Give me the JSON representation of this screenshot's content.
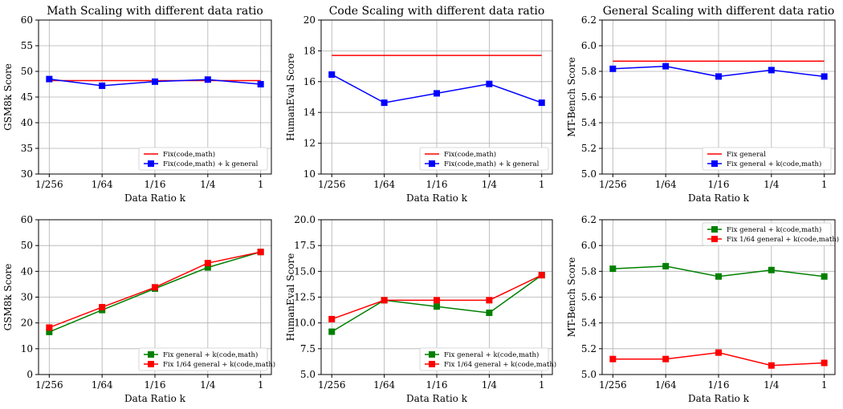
{
  "chart_data": [
    {
      "type": "line",
      "title": "Math Scaling with different data ratio",
      "xlabel": "Data Ratio k",
      "ylabel": "GSM8k Score",
      "categories": [
        "1/256",
        "1/64",
        "1/16",
        "1/4",
        "1"
      ],
      "ylim": [
        30,
        60
      ],
      "yticks": [
        30,
        35,
        40,
        45,
        50,
        55,
        60
      ],
      "ytick_labels": [
        "30",
        "35",
        "40",
        "45",
        "50",
        "55",
        "60"
      ],
      "grid": true,
      "legend_position": "lower-right",
      "series": [
        {
          "name": "Fix(code,math)",
          "color": "#ff0000",
          "marker": "none",
          "values": [
            48.2,
            48.2,
            48.2,
            48.2,
            48.2
          ]
        },
        {
          "name": "Fix(code,math) + k general",
          "color": "#0000ff",
          "marker": "square",
          "values": [
            48.5,
            47.2,
            48.0,
            48.4,
            47.5
          ]
        }
      ]
    },
    {
      "type": "line",
      "title": "Code Scaling with different data ratio",
      "xlabel": "Data Ratio k",
      "ylabel": "HumanEval Score",
      "categories": [
        "1/256",
        "1/64",
        "1/16",
        "1/4",
        "1"
      ],
      "ylim": [
        10,
        20
      ],
      "yticks": [
        10,
        12,
        14,
        16,
        18,
        20
      ],
      "ytick_labels": [
        "10",
        "12",
        "14",
        "16",
        "18",
        "20"
      ],
      "grid": true,
      "legend_position": "lower-right",
      "series": [
        {
          "name": "Fix(code,math)",
          "color": "#ff0000",
          "marker": "none",
          "values": [
            17.7,
            17.7,
            17.7,
            17.7,
            17.7
          ]
        },
        {
          "name": "Fix(code,math) + k general",
          "color": "#0000ff",
          "marker": "square",
          "values": [
            16.46,
            14.63,
            15.24,
            15.85,
            14.63
          ]
        }
      ]
    },
    {
      "type": "line",
      "title": "General Scaling with different data ratio",
      "xlabel": "Data Ratio k",
      "ylabel": "MT-Bench Score",
      "categories": [
        "1/256",
        "1/64",
        "1/16",
        "1/4",
        "1"
      ],
      "ylim": [
        5.0,
        6.2
      ],
      "yticks": [
        5.0,
        5.2,
        5.4,
        5.6,
        5.8,
        6.0,
        6.2
      ],
      "ytick_labels": [
        "5.0",
        "5.2",
        "5.4",
        "5.6",
        "5.8",
        "6.0",
        "6.2"
      ],
      "grid": true,
      "legend_position": "lower-right",
      "series": [
        {
          "name": "Fix general",
          "color": "#ff0000",
          "marker": "none",
          "values": [
            5.88,
            5.88,
            5.88,
            5.88,
            5.88
          ]
        },
        {
          "name": "Fix general + k(code,math)",
          "color": "#0000ff",
          "marker": "square",
          "values": [
            5.82,
            5.84,
            5.76,
            5.81,
            5.76
          ]
        }
      ]
    },
    {
      "type": "line",
      "title": "",
      "xlabel": "Data Ratio k",
      "ylabel": "GSM8k Score",
      "categories": [
        "1/256",
        "1/64",
        "1/16",
        "1/4",
        "1"
      ],
      "ylim": [
        0,
        60
      ],
      "yticks": [
        0,
        10,
        20,
        30,
        40,
        50,
        60
      ],
      "ytick_labels": [
        "0",
        "10",
        "20",
        "30",
        "40",
        "50",
        "60"
      ],
      "grid": true,
      "legend_position": "lower-right",
      "series": [
        {
          "name": "Fix general + k(code,math)",
          "color": "#008000",
          "marker": "square",
          "values": [
            16.5,
            25.0,
            33.3,
            41.5,
            47.5
          ]
        },
        {
          "name": "Fix 1/64 general + k(code,math)",
          "color": "#ff0000",
          "marker": "square",
          "values": [
            18.2,
            26.1,
            33.8,
            43.2,
            47.5
          ]
        }
      ]
    },
    {
      "type": "line",
      "title": "",
      "xlabel": "Data Ratio k",
      "ylabel": "HumanEval Score",
      "categories": [
        "1/256",
        "1/64",
        "1/16",
        "1/4",
        "1"
      ],
      "ylim": [
        5.0,
        20.0
      ],
      "yticks": [
        5.0,
        7.5,
        10.0,
        12.5,
        15.0,
        17.5,
        20.0
      ],
      "ytick_labels": [
        "5.0",
        "7.5",
        "10.0",
        "12.5",
        "15.0",
        "17.5",
        "20.0"
      ],
      "grid": true,
      "legend_position": "lower-right",
      "series": [
        {
          "name": "Fix general + k(code,math)",
          "color": "#008000",
          "marker": "square",
          "values": [
            9.15,
            12.2,
            11.59,
            10.98,
            14.63
          ]
        },
        {
          "name": "Fix 1/64 general + k(code,math)",
          "color": "#ff0000",
          "marker": "square",
          "values": [
            10.37,
            12.2,
            12.2,
            12.2,
            14.63
          ]
        }
      ]
    },
    {
      "type": "line",
      "title": "",
      "xlabel": "Data Ratio k",
      "ylabel": "MT-Bench Score",
      "categories": [
        "1/256",
        "1/64",
        "1/16",
        "1/4",
        "1"
      ],
      "ylim": [
        5.0,
        6.2
      ],
      "yticks": [
        5.0,
        5.2,
        5.4,
        5.6,
        5.8,
        6.0,
        6.2
      ],
      "ytick_labels": [
        "5.0",
        "5.2",
        "5.4",
        "5.6",
        "5.8",
        "6.0",
        "6.2"
      ],
      "grid": true,
      "legend_position": "top-right",
      "series": [
        {
          "name": "Fix general + k(code,math)",
          "color": "#008000",
          "marker": "square",
          "values": [
            5.82,
            5.84,
            5.76,
            5.81,
            5.76
          ]
        },
        {
          "name": "Fix 1/64 general + k(code,math)",
          "color": "#ff0000",
          "marker": "square",
          "values": [
            5.12,
            5.12,
            5.17,
            5.07,
            5.09
          ]
        }
      ]
    }
  ]
}
